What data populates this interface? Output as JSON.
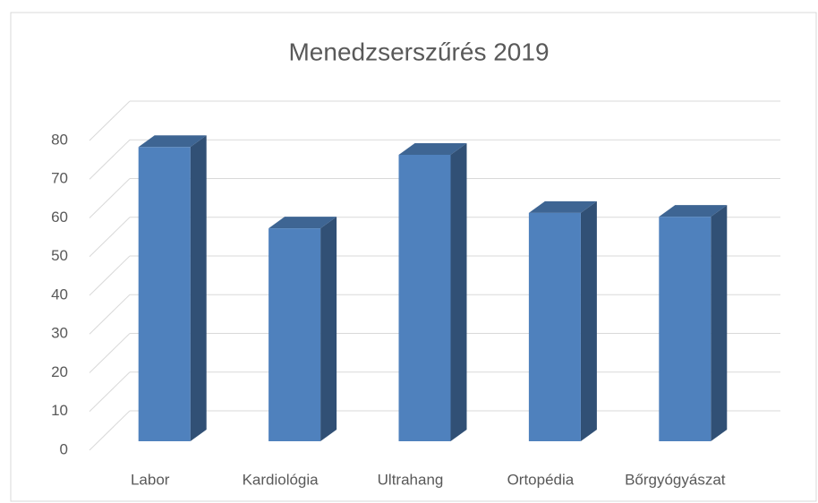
{
  "chart_data": {
    "type": "bar3d",
    "title": "Menedzserszűrés 2019",
    "categories": [
      "Labor",
      "Kardiológia",
      "Ultrahang",
      "Ortopédia",
      "Bőrgyógyászat"
    ],
    "values": [
      76,
      55,
      74,
      59,
      58
    ],
    "color": "#4f81bd",
    "ylim": [
      0,
      80
    ],
    "yticks": [
      0,
      10,
      20,
      30,
      40,
      50,
      60,
      70,
      80
    ],
    "grid": true
  }
}
